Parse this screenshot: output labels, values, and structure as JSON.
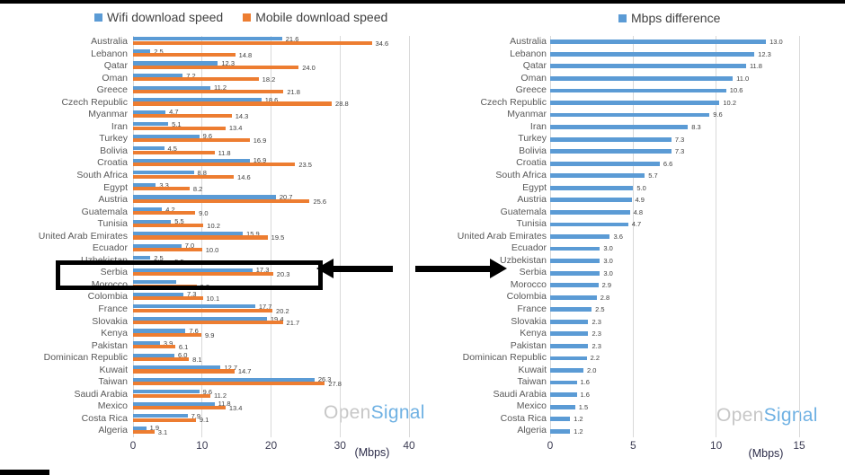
{
  "watermark": {
    "gray": "Open",
    "blue": "Signal"
  },
  "annotation": {
    "type": "highlight-box-with-arrows",
    "highlighted_country": "Serbia",
    "color": "#000000"
  },
  "colors": {
    "wifi_blue": "#5b9bd5",
    "mobile_orange": "#ed7d31",
    "gridline": "#d9d9d9",
    "country_label": "#595959",
    "value_label": "#404040",
    "watermark_gray": "#c7c7c7",
    "watermark_blue": "#6fb1e3"
  },
  "chart_data": [
    {
      "type": "bar",
      "orientation": "horizontal",
      "legend_position": "top",
      "grid": true,
      "xlabel": "(Mbps)",
      "xlim": [
        0,
        40
      ],
      "xticks": [
        0,
        10,
        20,
        30,
        40
      ],
      "categories": [
        "Australia",
        "Lebanon",
        "Qatar",
        "Oman",
        "Greece",
        "Czech Republic",
        "Myanmar",
        "Iran",
        "Turkey",
        "Bolivia",
        "Croatia",
        "South Africa",
        "Egypt",
        "Austria",
        "Guatemala",
        "Tunisia",
        "United Arab Emirates",
        "Ecuador",
        "Uzbekistan",
        "Serbia",
        "Morocco",
        "Colombia",
        "France",
        "Slovakia",
        "Kenya",
        "Pakistan",
        "Dominican Republic",
        "Kuwait",
        "Taiwan",
        "Saudi Arabia",
        "Mexico",
        "Costa Rica",
        "Algeria"
      ],
      "series": [
        {
          "name": "Wifi download speed",
          "color": "#5b9bd5",
          "values": [
            21.6,
            2.5,
            12.3,
            7.2,
            11.2,
            18.6,
            4.7,
            5.1,
            9.6,
            4.5,
            16.9,
            8.8,
            3.3,
            20.7,
            4.2,
            5.5,
            15.9,
            7.0,
            2.5,
            17.3,
            6.3,
            7.3,
            17.7,
            19.4,
            7.6,
            3.9,
            6.0,
            12.7,
            26.3,
            9.6,
            11.8,
            7.9,
            1.9
          ]
        },
        {
          "name": "Mobile download speed",
          "color": "#ed7d31",
          "values": [
            34.6,
            14.8,
            24.0,
            18.2,
            21.8,
            28.8,
            14.3,
            13.4,
            16.9,
            11.8,
            23.5,
            14.6,
            8.2,
            25.6,
            9.0,
            10.2,
            19.5,
            10.0,
            5.5,
            20.3,
            9.2,
            10.1,
            20.2,
            21.7,
            9.9,
            6.1,
            8.1,
            14.7,
            27.8,
            11.2,
            13.4,
            9.1,
            3.1
          ]
        }
      ],
      "hidden_value_labels": [
        [
          0,
          20
        ]
      ]
    },
    {
      "type": "bar",
      "orientation": "horizontal",
      "legend_position": "top",
      "grid": true,
      "xlabel": "(Mbps)",
      "xlim": [
        0,
        15
      ],
      "xticks": [
        0,
        5,
        10,
        15
      ],
      "categories": [
        "Australia",
        "Lebanon",
        "Qatar",
        "Oman",
        "Greece",
        "Czech Republic",
        "Myanmar",
        "Iran",
        "Turkey",
        "Bolivia",
        "Croatia",
        "South Africa",
        "Egypt",
        "Austria",
        "Guatemala",
        "Tunisia",
        "United Arab Emirates",
        "Ecuador",
        "Uzbekistan",
        "Serbia",
        "Morocco",
        "Colombia",
        "France",
        "Slovakia",
        "Kenya",
        "Pakistan",
        "Dominican Republic",
        "Kuwait",
        "Taiwan",
        "Saudi Arabia",
        "Mexico",
        "Costa Rica",
        "Algeria"
      ],
      "series": [
        {
          "name": "Mbps difference",
          "color": "#5b9bd5",
          "values": [
            13.0,
            12.3,
            11.8,
            11.0,
            10.6,
            10.2,
            9.6,
            8.3,
            7.3,
            7.3,
            6.6,
            5.7,
            5.0,
            4.9,
            4.8,
            4.7,
            3.6,
            3.0,
            3.0,
            3.0,
            2.9,
            2.8,
            2.5,
            2.3,
            2.3,
            2.3,
            2.2,
            2.0,
            1.6,
            1.6,
            1.5,
            1.2,
            1.2
          ]
        }
      ],
      "hidden_value_labels": []
    }
  ]
}
